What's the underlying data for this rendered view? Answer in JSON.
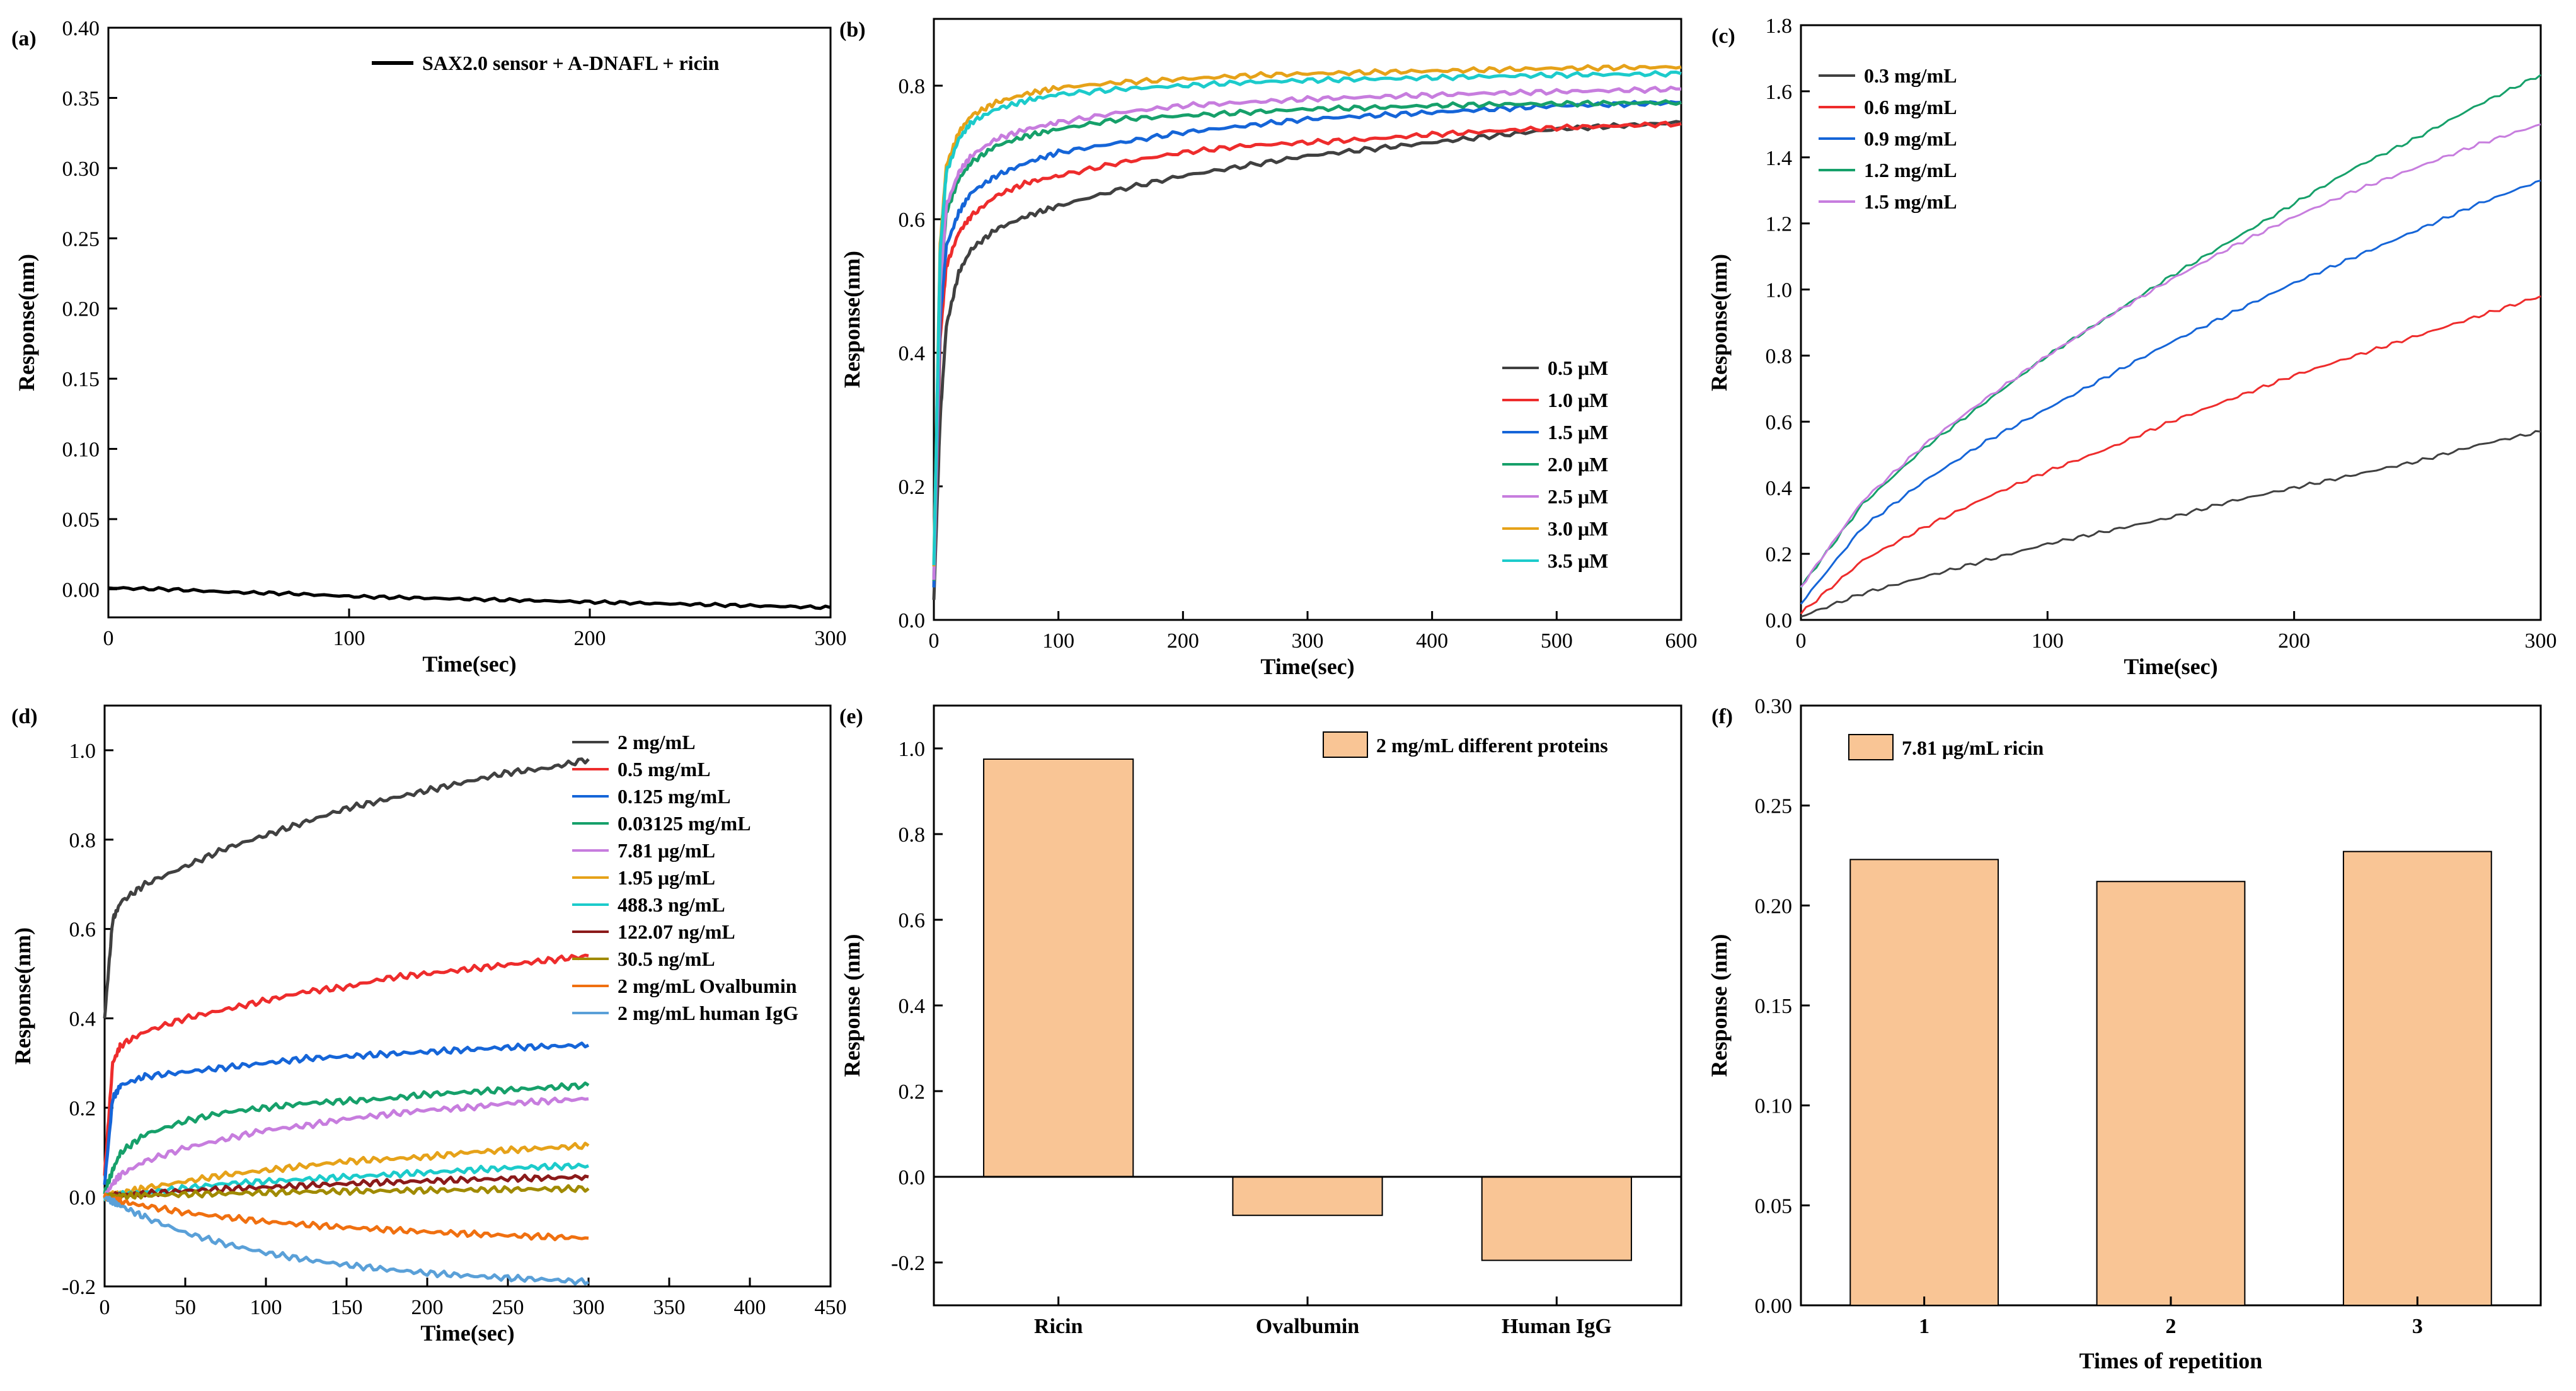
{
  "chart_data": [
    {
      "panel": "(a)",
      "type": "line",
      "xlabel": "Time(sec)",
      "ylabel": "Response(nm)",
      "xlim": [
        0,
        300
      ],
      "ylim": [
        -0.02,
        0.4
      ],
      "xticks": [
        0,
        100,
        200,
        300
      ],
      "xtick_labels": [
        "0",
        "100",
        "200",
        "300"
      ],
      "yticks": [
        0.0,
        0.05,
        0.1,
        0.15,
        0.2,
        0.25,
        0.3,
        0.35,
        0.4
      ],
      "ytick_labels": [
        "0.00",
        "0.05",
        "0.10",
        "0.15",
        "0.20",
        "0.25",
        "0.30",
        "0.35",
        "0.40"
      ],
      "legend_position": "top-right",
      "series": [
        {
          "name": "SAX2.0 sensor + A-DNAFL + ricin",
          "color": "#000000",
          "x": [
            0,
            25,
            50,
            75,
            100,
            125,
            150,
            175,
            200,
            225,
            250,
            275,
            300
          ],
          "y": [
            0.001,
            0.0,
            -0.002,
            -0.003,
            -0.005,
            -0.006,
            -0.007,
            -0.008,
            -0.009,
            -0.01,
            -0.011,
            -0.012,
            -0.013
          ]
        }
      ]
    },
    {
      "panel": "(b)",
      "type": "line",
      "xlabel": "Time(sec)",
      "ylabel": "Response(nm)",
      "xlim": [
        0,
        600
      ],
      "ylim": [
        0,
        0.9
      ],
      "xticks": [
        0,
        100,
        200,
        300,
        400,
        500,
        600
      ],
      "xtick_labels": [
        "0",
        "100",
        "200",
        "300",
        "400",
        "500",
        "600"
      ],
      "yticks": [
        0,
        0.2,
        0.4,
        0.6,
        0.8
      ],
      "ytick_labels": [
        "0.0",
        "0.2",
        "0.4",
        "0.6",
        "0.8"
      ],
      "legend_position": "bottom-right",
      "x": [
        0,
        5,
        10,
        20,
        30,
        50,
        75,
        100,
        150,
        200,
        250,
        300,
        350,
        400,
        450,
        500,
        550,
        600
      ],
      "series": [
        {
          "name": "0.5 μM",
          "color": "#404040",
          "y": [
            0.03,
            0.3,
            0.44,
            0.52,
            0.555,
            0.585,
            0.605,
            0.62,
            0.645,
            0.665,
            0.68,
            0.695,
            0.705,
            0.715,
            0.725,
            0.735,
            0.74,
            0.745
          ]
        },
        {
          "name": "1.0 μM",
          "color": "#ee2c2c",
          "y": [
            0.05,
            0.42,
            0.53,
            0.58,
            0.605,
            0.635,
            0.655,
            0.665,
            0.685,
            0.7,
            0.71,
            0.715,
            0.72,
            0.727,
            0.732,
            0.737,
            0.74,
            0.743
          ]
        },
        {
          "name": "1.5 μM",
          "color": "#1565d8",
          "y": [
            0.05,
            0.45,
            0.56,
            0.61,
            0.64,
            0.665,
            0.685,
            0.7,
            0.715,
            0.73,
            0.74,
            0.75,
            0.755,
            0.76,
            0.765,
            0.77,
            0.772,
            0.775
          ]
        },
        {
          "name": "2.0 μM",
          "color": "#16a06a",
          "y": [
            0.06,
            0.5,
            0.61,
            0.66,
            0.685,
            0.71,
            0.725,
            0.735,
            0.75,
            0.755,
            0.76,
            0.765,
            0.767,
            0.77,
            0.772,
            0.773,
            0.774,
            0.775
          ]
        },
        {
          "name": "2.5 μM",
          "color": "#c77dde",
          "y": [
            0.06,
            0.5,
            0.62,
            0.67,
            0.695,
            0.72,
            0.735,
            0.745,
            0.76,
            0.77,
            0.775,
            0.78,
            0.783,
            0.786,
            0.789,
            0.791,
            0.793,
            0.795
          ]
        },
        {
          "name": "3.0 μM",
          "color": "#e6a219",
          "y": [
            0.08,
            0.56,
            0.68,
            0.73,
            0.755,
            0.775,
            0.788,
            0.797,
            0.805,
            0.81,
            0.815,
            0.818,
            0.82,
            0.822,
            0.824,
            0.826,
            0.827,
            0.828
          ]
        },
        {
          "name": "3.5 μM",
          "color": "#1ccbcb",
          "y": [
            0.08,
            0.55,
            0.67,
            0.72,
            0.745,
            0.765,
            0.778,
            0.787,
            0.795,
            0.8,
            0.805,
            0.808,
            0.81,
            0.812,
            0.814,
            0.816,
            0.817,
            0.818
          ]
        }
      ]
    },
    {
      "panel": "(c)",
      "type": "line",
      "xlabel": "Time(sec)",
      "ylabel": "Response(nm)",
      "xlim": [
        0,
        300
      ],
      "ylim": [
        0,
        1.8
      ],
      "xticks": [
        0,
        100,
        200,
        300
      ],
      "xtick_labels": [
        "0",
        "100",
        "200",
        "300"
      ],
      "yticks": [
        0,
        0.2,
        0.4,
        0.6,
        0.8,
        1.0,
        1.2,
        1.4,
        1.6,
        1.8
      ],
      "ytick_labels": [
        "0.0",
        "0.2",
        "0.4",
        "0.6",
        "0.8",
        "1.0",
        "1.2",
        "1.4",
        "1.6",
        "1.8"
      ],
      "legend_position": "top-left",
      "x": [
        0,
        25,
        50,
        75,
        100,
        125,
        150,
        175,
        200,
        225,
        250,
        275,
        300
      ],
      "series": [
        {
          "name": "0.3 mg/mL",
          "color": "#404040",
          "y": [
            0.01,
            0.08,
            0.13,
            0.18,
            0.23,
            0.27,
            0.31,
            0.36,
            0.4,
            0.44,
            0.48,
            0.53,
            0.57
          ]
        },
        {
          "name": "0.6 mg/mL",
          "color": "#ee2c2c",
          "y": [
            0.02,
            0.18,
            0.28,
            0.37,
            0.45,
            0.52,
            0.6,
            0.67,
            0.74,
            0.8,
            0.86,
            0.92,
            0.98
          ]
        },
        {
          "name": "0.9 mg/mL",
          "color": "#1565d8",
          "y": [
            0.05,
            0.28,
            0.42,
            0.54,
            0.64,
            0.74,
            0.84,
            0.93,
            1.02,
            1.1,
            1.18,
            1.26,
            1.33
          ]
        },
        {
          "name": "1.2 mg/mL",
          "color": "#16a06a",
          "y": [
            0.1,
            0.35,
            0.52,
            0.66,
            0.8,
            0.92,
            1.04,
            1.15,
            1.26,
            1.37,
            1.46,
            1.56,
            1.65
          ]
        },
        {
          "name": "1.5 mg/mL",
          "color": "#c77dde",
          "y": [
            0.1,
            0.36,
            0.53,
            0.67,
            0.8,
            0.92,
            1.03,
            1.13,
            1.22,
            1.3,
            1.37,
            1.44,
            1.5
          ]
        }
      ]
    },
    {
      "panel": "(d)",
      "type": "line",
      "xlabel": "Time(sec)",
      "ylabel": "Response(nm)",
      "xlim": [
        0,
        450
      ],
      "ylim": [
        -0.2,
        1.1
      ],
      "xticks": [
        0,
        50,
        100,
        150,
        200,
        250,
        300,
        350,
        400,
        450
      ],
      "xtick_labels": [
        "0",
        "50",
        "100",
        "150",
        "200",
        "250",
        "300",
        "350",
        "400",
        "450"
      ],
      "yticks": [
        -0.2,
        0.0,
        0.2,
        0.4,
        0.6,
        0.8,
        1.0
      ],
      "ytick_labels": [
        "-0.2",
        "0.0",
        "0.2",
        "0.4",
        "0.6",
        "0.8",
        "1.0"
      ],
      "legend_position": "top-right",
      "x": [
        0,
        5,
        10,
        25,
        50,
        75,
        100,
        125,
        150,
        175,
        200,
        225,
        250,
        275,
        300
      ],
      "series": [
        {
          "name": "2 mg/mL",
          "color": "#404040",
          "y": [
            0.4,
            0.62,
            0.66,
            0.7,
            0.74,
            0.78,
            0.81,
            0.84,
            0.87,
            0.89,
            0.91,
            0.93,
            0.95,
            0.96,
            0.98
          ]
        },
        {
          "name": "0.5 mg/mL",
          "color": "#ee2c2c",
          "y": [
            0.05,
            0.3,
            0.34,
            0.37,
            0.4,
            0.42,
            0.44,
            0.46,
            0.47,
            0.49,
            0.5,
            0.51,
            0.52,
            0.53,
            0.54
          ]
        },
        {
          "name": "0.125 mg/mL",
          "color": "#1565d8",
          "y": [
            0.03,
            0.22,
            0.25,
            0.27,
            0.28,
            0.29,
            0.3,
            0.31,
            0.315,
            0.32,
            0.325,
            0.33,
            0.335,
            0.337,
            0.34
          ]
        },
        {
          "name": "0.03125 mg/mL",
          "color": "#16a06a",
          "y": [
            0.01,
            0.06,
            0.1,
            0.14,
            0.17,
            0.19,
            0.2,
            0.21,
            0.215,
            0.22,
            0.23,
            0.235,
            0.24,
            0.245,
            0.25
          ]
        },
        {
          "name": "7.81 μg/mL",
          "color": "#c77dde",
          "y": [
            0.0,
            0.03,
            0.05,
            0.08,
            0.11,
            0.13,
            0.15,
            0.16,
            0.175,
            0.185,
            0.195,
            0.2,
            0.21,
            0.215,
            0.22
          ]
        },
        {
          "name": "1.95 μg/mL",
          "color": "#e6a219",
          "y": [
            0.0,
            0.005,
            0.01,
            0.02,
            0.035,
            0.05,
            0.06,
            0.07,
            0.08,
            0.085,
            0.09,
            0.1,
            0.105,
            0.11,
            0.115
          ]
        },
        {
          "name": "488.3 ng/mL",
          "color": "#1ccbcb",
          "y": [
            0.0,
            0.002,
            0.005,
            0.01,
            0.02,
            0.03,
            0.035,
            0.04,
            0.045,
            0.05,
            0.055,
            0.06,
            0.065,
            0.068,
            0.07
          ]
        },
        {
          "name": "122.07 ng/mL",
          "color": "#8b1a1a",
          "y": [
            0.0,
            0.002,
            0.004,
            0.008,
            0.014,
            0.018,
            0.022,
            0.026,
            0.03,
            0.033,
            0.036,
            0.039,
            0.041,
            0.043,
            0.045
          ]
        },
        {
          "name": "30.5 ng/mL",
          "color": "#a08a00",
          "y": [
            0.0,
            0.001,
            0.002,
            0.004,
            0.006,
            0.008,
            0.01,
            0.012,
            0.013,
            0.014,
            0.015,
            0.016,
            0.017,
            0.018,
            0.019
          ]
        },
        {
          "name": "2 mg/mL Ovalbumin",
          "color": "#f07010",
          "y": [
            0.0,
            -0.005,
            -0.01,
            -0.02,
            -0.035,
            -0.045,
            -0.055,
            -0.062,
            -0.068,
            -0.073,
            -0.078,
            -0.082,
            -0.086,
            -0.089,
            -0.092
          ]
        },
        {
          "name": "2 mg/mL human IgG",
          "color": "#5aa0d8",
          "y": [
            0.0,
            -0.01,
            -0.02,
            -0.045,
            -0.08,
            -0.105,
            -0.125,
            -0.14,
            -0.152,
            -0.162,
            -0.17,
            -0.176,
            -0.181,
            -0.185,
            -0.19
          ]
        }
      ]
    },
    {
      "panel": "(e)",
      "type": "bar",
      "xlabel": "",
      "ylabel": "Response (nm)",
      "ylim": [
        -0.3,
        1.1
      ],
      "yticks": [
        -0.2,
        0.0,
        0.2,
        0.4,
        0.6,
        0.8,
        1.0
      ],
      "ytick_labels": [
        "-0.2",
        "0.0",
        "0.2",
        "0.4",
        "0.6",
        "0.8",
        "1.0"
      ],
      "categories": [
        "Ricin",
        "Ovalbumin",
        "Human IgG"
      ],
      "values": [
        0.975,
        -0.09,
        -0.195
      ],
      "legend_position": "top-right",
      "series": [
        {
          "name": "2 mg/mL different proteins",
          "color": "#f9c595"
        }
      ]
    },
    {
      "panel": "(f)",
      "type": "bar",
      "xlabel": "Times of repetition",
      "ylabel": "Response (nm)",
      "ylim": [
        0,
        0.3
      ],
      "yticks": [
        0.0,
        0.05,
        0.1,
        0.15,
        0.2,
        0.25,
        0.3
      ],
      "ytick_labels": [
        "0.00",
        "0.05",
        "0.10",
        "0.15",
        "0.20",
        "0.25",
        "0.30"
      ],
      "categories": [
        "1",
        "2",
        "3"
      ],
      "values": [
        0.223,
        0.212,
        0.227
      ],
      "legend_position": "top-left",
      "series": [
        {
          "name": "7.81 μg/mL ricin",
          "color": "#f9c595"
        }
      ]
    }
  ]
}
